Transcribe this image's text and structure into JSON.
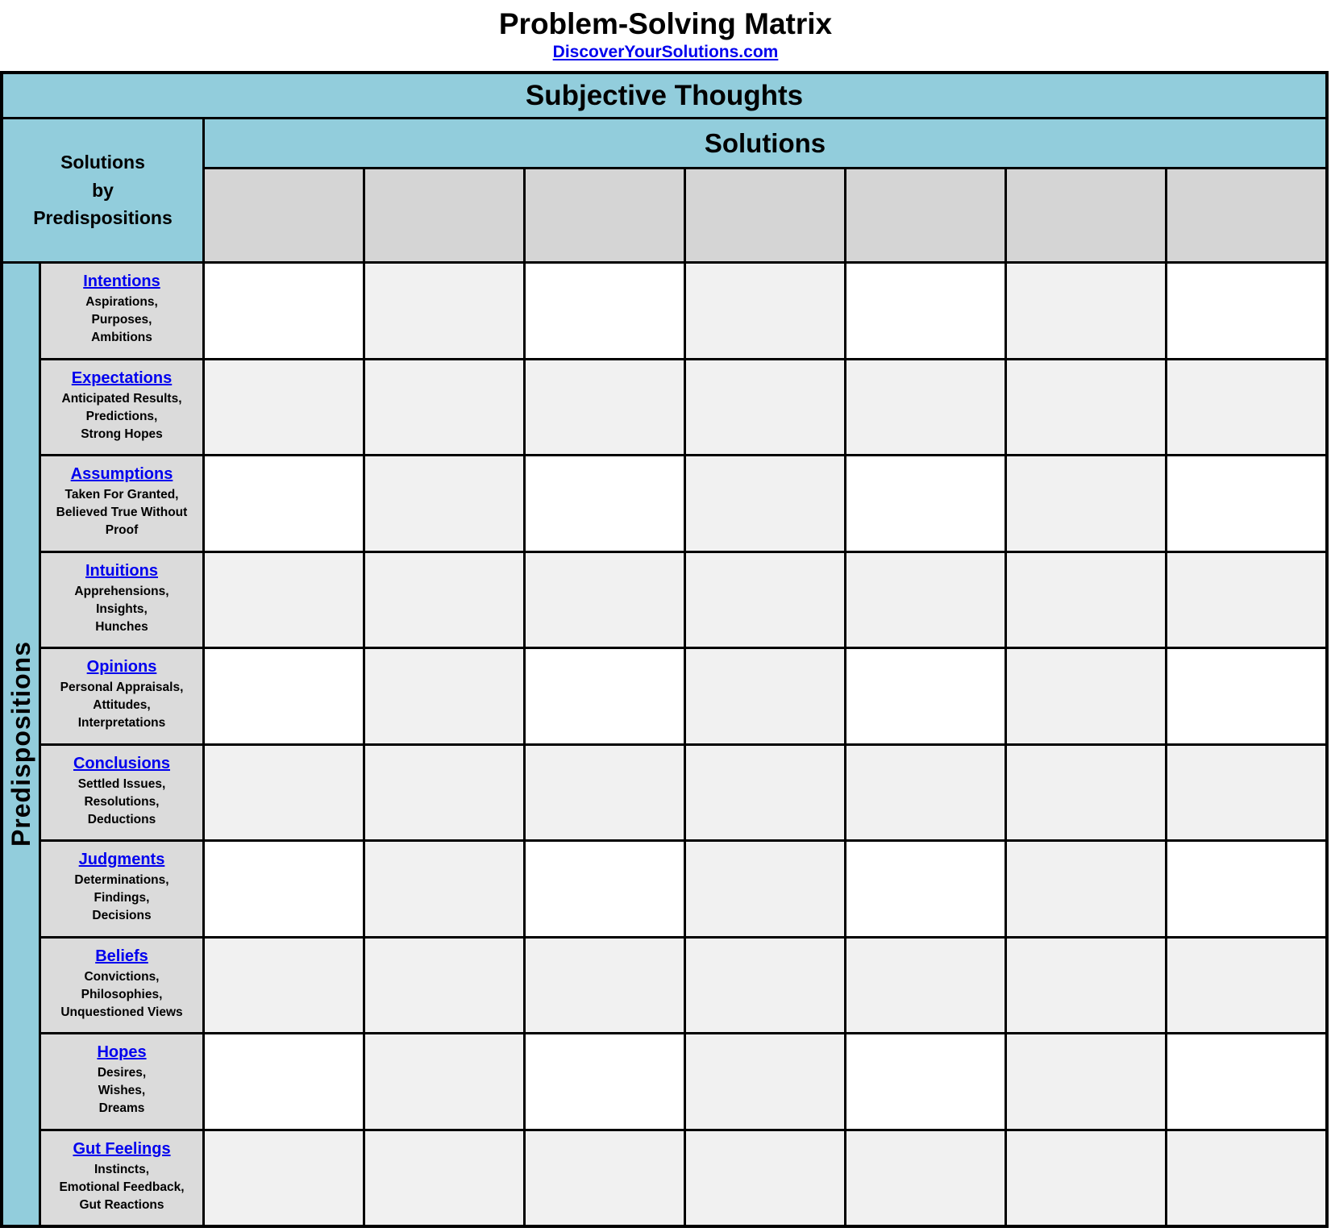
{
  "header": {
    "title": "Problem-Solving Matrix",
    "site_link": "DiscoverYourSolutions.com"
  },
  "matrix": {
    "top_header": "Subjective Thoughts",
    "columns_header": "Solutions",
    "corner_lines": [
      "Solutions",
      "by",
      "Predispositions"
    ],
    "side_header": "Predispositions",
    "column_count": 7,
    "rows": [
      {
        "title": "Intentions",
        "desc": [
          "Aspirations,",
          "Purposes,",
          "Ambitions"
        ]
      },
      {
        "title": "Expectations",
        "desc": [
          "Anticipated Results,",
          "Predictions,",
          "Strong Hopes"
        ]
      },
      {
        "title": "Assumptions",
        "desc": [
          "Taken For Granted,",
          "Believed True Without Proof"
        ]
      },
      {
        "title": "Intuitions",
        "desc": [
          "Apprehensions,",
          "Insights,",
          "Hunches"
        ]
      },
      {
        "title": "Opinions",
        "desc": [
          "Personal Appraisals,",
          "Attitudes,",
          "Interpretations"
        ]
      },
      {
        "title": "Conclusions",
        "desc": [
          "Settled Issues,",
          "Resolutions,",
          "Deductions"
        ]
      },
      {
        "title": "Judgments",
        "desc": [
          "Determinations,",
          "Findings,",
          "Decisions"
        ]
      },
      {
        "title": "Beliefs",
        "desc": [
          "Convictions,",
          "Philosophies,",
          "Unquestioned Views"
        ]
      },
      {
        "title": "Hopes",
        "desc": [
          "Desires,",
          "Wishes,",
          "Dreams"
        ]
      },
      {
        "title": "Gut Feelings",
        "desc": [
          "Instincts,",
          "Emotional Feedback,",
          "Gut Reactions"
        ]
      }
    ]
  },
  "colors": {
    "header_blue": "#92CDDC",
    "column_header_gray": "#D5D5D5",
    "row_header_gray": "#DBDBDB",
    "cell_light_gray": "#F1F1F1",
    "cell_white": "#FFFFFF",
    "link_blue": "#0000EE",
    "border_black": "#000000"
  }
}
